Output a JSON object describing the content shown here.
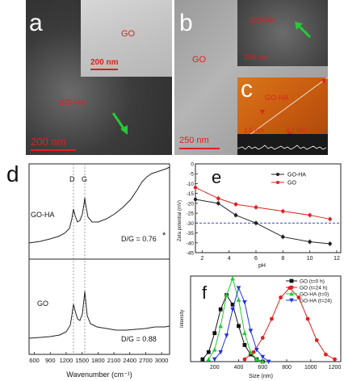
{
  "panel_a": {
    "label": "a",
    "inset_label": "GO",
    "inset_scale": "200 nm",
    "annotation": "GO-HA",
    "scale": "200 nm"
  },
  "panel_b": {
    "label": "b",
    "label_go": "GO",
    "inset_label": "GO-HA",
    "inset_scale": "250 nm",
    "scale": "250 nm"
  },
  "panel_c": {
    "label": "c",
    "annotation": "GO-HA",
    "left_scale": "1.5 nm",
    "right_scale": "4.7 nm"
  },
  "colors": {
    "accent_red": "#e02020",
    "arrow_green": "#22cc33"
  },
  "chart_data": [
    {
      "panel": "d",
      "type": "line",
      "xlabel": "Wavenumber (cm⁻¹)",
      "xticks": [
        "600",
        "900",
        "1200",
        "1500",
        "1800",
        "2100",
        "2400",
        "2700",
        "3000"
      ],
      "xlim": [
        500,
        3150
      ],
      "peak_labels": [
        "D",
        "G"
      ],
      "series": [
        {
          "name": "GO-HA",
          "ratio_label": "D/G = 0.76",
          "mark": "*"
        },
        {
          "name": "GO",
          "ratio_label": "D/G = 0.88"
        }
      ]
    },
    {
      "panel": "e",
      "type": "line",
      "xlabel": "pH",
      "ylabel": "Zeta potential (mV)",
      "xlim": [
        1.5,
        12.3
      ],
      "ylim": [
        -45,
        0
      ],
      "xticks": [
        2,
        4,
        6,
        8,
        10,
        12
      ],
      "yticks": [
        0,
        -5,
        -10,
        -15,
        -20,
        -25,
        -30,
        -35,
        -40,
        -45
      ],
      "reference_line": -30,
      "series": [
        {
          "name": "GO-HA",
          "color": "#222222",
          "x": [
            1.5,
            3.2,
            4.5,
            6,
            8,
            10,
            11.5
          ],
          "y": [
            -18,
            -20,
            -26,
            -30,
            -37,
            -39.5,
            -40.5
          ]
        },
        {
          "name": "GO",
          "color": "#e02020",
          "x": [
            1.5,
            3.2,
            4.5,
            6,
            8,
            10,
            11.5
          ],
          "y": [
            -12,
            -17.5,
            -20.5,
            -22,
            -24,
            -26,
            -28
          ]
        }
      ]
    },
    {
      "panel": "f",
      "type": "line",
      "xlabel": "Size (nm)",
      "ylabel": "Intensity",
      "xlim": [
        0,
        1250
      ],
      "ylim": [
        0,
        36
      ],
      "xticks": [
        200,
        400,
        600,
        800,
        1000,
        1200
      ],
      "series": [
        {
          "name": "GO (t=0 h)",
          "color": "#111111",
          "marker": "square",
          "x": [
            100,
            150,
            200,
            250,
            300,
            350,
            400,
            450,
            500,
            550,
            600
          ],
          "y": [
            1,
            4,
            12,
            22,
            28,
            24,
            15,
            7,
            3,
            1,
            0
          ]
        },
        {
          "name": "GO (t=24 h)",
          "color": "#e02020",
          "marker": "circle",
          "x": [
            450,
            525,
            600,
            675,
            750,
            825,
            900,
            975,
            1050,
            1125,
            1200
          ],
          "y": [
            1,
            4,
            10,
            18,
            27,
            31,
            27,
            18,
            9,
            3,
            1
          ]
        },
        {
          "name": "GO-HA (t=0)",
          "color": "#22cc33",
          "marker": "triangle-up",
          "x": [
            150,
            200,
            250,
            300,
            350,
            400,
            450,
            500,
            550,
            600
          ],
          "y": [
            1,
            5,
            15,
            28,
            35,
            26,
            12,
            4,
            1,
            0
          ]
        },
        {
          "name": "GO-HA (t=24)",
          "color": "#2233dd",
          "marker": "triangle-down",
          "x": [
            200,
            250,
            300,
            350,
            400,
            450,
            500,
            550,
            600,
            650
          ],
          "y": [
            1,
            4,
            11,
            22,
            31,
            25,
            13,
            5,
            2,
            0
          ]
        }
      ]
    }
  ]
}
